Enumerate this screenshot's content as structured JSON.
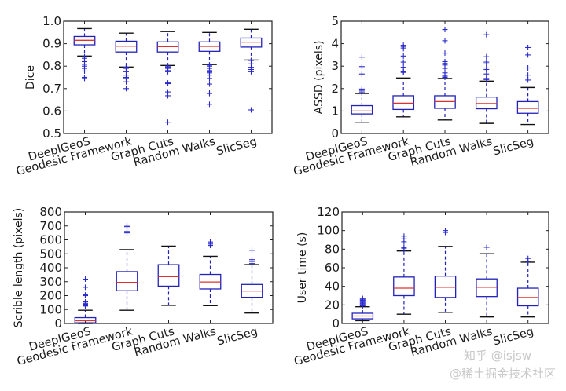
{
  "chart_data": [
    {
      "id": "dice",
      "type": "box",
      "title": "",
      "xlabel": "",
      "ylabel": "Dice",
      "ylim": [
        0.5,
        1.0
      ],
      "yticks": [
        0.5,
        0.6,
        0.7,
        0.8,
        0.9,
        1.0
      ],
      "ytick_labels": [
        "0.5",
        "0.6",
        "0.7",
        "0.8",
        "0.9",
        "1.0"
      ],
      "categories": [
        "DeepIGeoS",
        "Geodesic Framework",
        "Graph Cuts",
        "Random Walks",
        "SlicSeg"
      ],
      "boxes": [
        {
          "whislo": 0.845,
          "q1": 0.895,
          "med": 0.915,
          "q3": 0.932,
          "whishi": 0.967,
          "fliers": [
            0.842,
            0.835,
            0.82,
            0.808,
            0.8,
            0.79,
            0.778,
            0.75,
            0.745
          ]
        },
        {
          "whislo": 0.796,
          "q1": 0.863,
          "med": 0.889,
          "q3": 0.911,
          "whishi": 0.947,
          "fliers": [
            0.795,
            0.793,
            0.79,
            0.775,
            0.76,
            0.75,
            0.745,
            0.73,
            0.7
          ]
        },
        {
          "whislo": 0.803,
          "q1": 0.863,
          "med": 0.887,
          "q3": 0.908,
          "whishi": 0.954,
          "fliers": [
            0.8,
            0.795,
            0.79,
            0.78,
            0.775,
            0.725,
            0.722,
            0.685,
            0.668,
            0.55
          ]
        },
        {
          "whislo": 0.807,
          "q1": 0.866,
          "med": 0.888,
          "q3": 0.908,
          "whishi": 0.95,
          "fliers": [
            0.805,
            0.8,
            0.79,
            0.78,
            0.775,
            0.77,
            0.76,
            0.745,
            0.72,
            0.68,
            0.678,
            0.63
          ]
        },
        {
          "whislo": 0.827,
          "q1": 0.885,
          "med": 0.907,
          "q3": 0.925,
          "whishi": 0.964,
          "fliers": [
            0.825,
            0.81,
            0.795,
            0.785,
            0.775,
            0.605
          ]
        }
      ]
    },
    {
      "id": "assd",
      "type": "box",
      "title": "",
      "xlabel": "",
      "ylabel": "ASSD (pixels)",
      "ylim": [
        0,
        5
      ],
      "yticks": [
        0,
        1,
        2,
        3,
        4,
        5
      ],
      "ytick_labels": [
        "0",
        "1",
        "2",
        "3",
        "4",
        "5"
      ],
      "categories": [
        "DeepIGeoS",
        "Geodesic Framework",
        "Graph Cuts",
        "Random Walks",
        "SlicSeg"
      ],
      "boxes": [
        {
          "whislo": 0.5,
          "q1": 0.87,
          "med": 1.0,
          "q3": 1.24,
          "whishi": 1.78,
          "fliers": [
            1.8,
            1.85,
            1.92,
            1.98,
            2.65,
            2.98,
            3.4
          ]
        },
        {
          "whislo": 0.74,
          "q1": 1.07,
          "med": 1.35,
          "q3": 1.68,
          "whishi": 2.47,
          "fliers": [
            2.72,
            2.75,
            2.95,
            3.18,
            3.45,
            3.78,
            3.85,
            3.93
          ]
        },
        {
          "whislo": 0.6,
          "q1": 1.12,
          "med": 1.42,
          "q3": 1.68,
          "whishi": 2.45,
          "fliers": [
            2.5,
            2.55,
            2.6,
            2.7,
            2.9,
            3.05,
            3.12,
            3.2,
            3.58,
            4.13,
            4.63
          ]
        },
        {
          "whislo": 0.45,
          "q1": 1.1,
          "med": 1.33,
          "q3": 1.62,
          "whishi": 2.33,
          "fliers": [
            2.4,
            2.45,
            2.65,
            2.85,
            2.92,
            3.1,
            3.18,
            3.42,
            4.4
          ]
        },
        {
          "whislo": 0.4,
          "q1": 0.9,
          "med": 1.12,
          "q3": 1.42,
          "whishi": 2.05,
          "fliers": [
            2.38,
            2.6,
            2.92,
            3.5,
            3.83
          ]
        }
      ]
    },
    {
      "id": "scribble",
      "type": "box",
      "title": "",
      "xlabel": "",
      "ylabel": "Scrible length (pixels)",
      "ylim": [
        0,
        800
      ],
      "yticks": [
        0,
        100,
        200,
        300,
        400,
        500,
        600,
        700,
        800
      ],
      "ytick_labels": [
        "0",
        "100",
        "200",
        "300",
        "400",
        "500",
        "600",
        "700",
        "800"
      ],
      "categories": [
        "DeepIGeoS",
        "Geodesic Framework",
        "Graph Cuts",
        "Random Walks",
        "SlicSeg"
      ],
      "boxes": [
        {
          "whislo": 0,
          "q1": 5,
          "med": 20,
          "q3": 42,
          "whishi": 95,
          "fliers": [
            125,
            130,
            138,
            145,
            155,
            200,
            205,
            260,
            318
          ]
        },
        {
          "whislo": 95,
          "q1": 235,
          "med": 295,
          "q3": 372,
          "whishi": 530,
          "fliers": [
            650,
            660,
            695,
            705
          ]
        },
        {
          "whislo": 130,
          "q1": 268,
          "med": 336,
          "q3": 422,
          "whishi": 555,
          "fliers": []
        },
        {
          "whislo": 128,
          "q1": 248,
          "med": 298,
          "q3": 352,
          "whishi": 482,
          "fliers": [
            560,
            570,
            585
          ]
        },
        {
          "whislo": 75,
          "q1": 188,
          "med": 233,
          "q3": 280,
          "whishi": 422,
          "fliers": [
            430,
            445,
            458,
            525
          ]
        }
      ]
    },
    {
      "id": "usertime",
      "type": "box",
      "title": "",
      "xlabel": "",
      "ylabel": "User time (s)",
      "ylim": [
        0,
        120
      ],
      "yticks": [
        0,
        20,
        40,
        60,
        80,
        100,
        120
      ],
      "ytick_labels": [
        "0",
        "20",
        "40",
        "60",
        "80",
        "100",
        "120"
      ],
      "categories": [
        "DeepIGeoS",
        "Geodesic Framework",
        "Graph Cuts",
        "Random Walks",
        "SlicSeg"
      ],
      "boxes": [
        {
          "whislo": 3,
          "q1": 5,
          "med": 8,
          "q3": 11,
          "whishi": 18,
          "fliers": [
            19,
            20,
            21,
            22,
            23,
            24,
            25,
            26,
            27
          ]
        },
        {
          "whislo": 10,
          "q1": 30,
          "med": 38,
          "q3": 50,
          "whishi": 78,
          "fliers": [
            79,
            81,
            82,
            88,
            91,
            94
          ]
        },
        {
          "whislo": 12,
          "q1": 28,
          "med": 39,
          "q3": 51,
          "whishi": 83,
          "fliers": [
            98,
            100
          ]
        },
        {
          "whislo": 7,
          "q1": 29,
          "med": 39,
          "q3": 48,
          "whishi": 75,
          "fliers": [
            82
          ]
        },
        {
          "whislo": 7,
          "q1": 19,
          "med": 28,
          "q3": 38,
          "whishi": 66,
          "fliers": [
            67,
            70
          ]
        }
      ]
    }
  ],
  "watermark": {
    "line1": "知乎 @isjsw",
    "line2": "@稀土掘金技术社区"
  }
}
